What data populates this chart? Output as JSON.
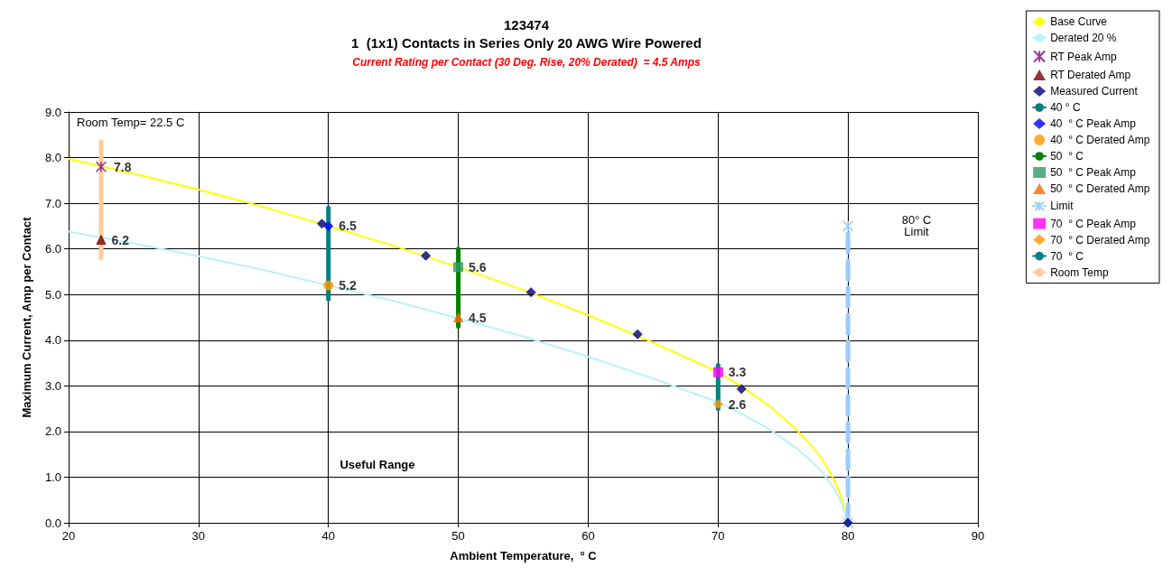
{
  "chart_data": {
    "type": "line",
    "title": "123474\n1  (1x1) Contacts in Series Only 20 AWG Wire Powered",
    "subtitle": "Current Rating per Contact (30 Deg. Rise, 20% Derated)  = 4.5 Amps",
    "xlabel": "Ambient Temperature,  ° C",
    "ylabel": "Maximum Current, Amp per Contact",
    "xlim": [
      20,
      90
    ],
    "xticks": [
      20,
      30,
      40,
      50,
      60,
      70,
      80,
      90
    ],
    "ylim": [
      0,
      9
    ],
    "yticks": [
      {
        "value": 0,
        "label": "0.0"
      },
      {
        "value": 1,
        "label": "1.0"
      },
      {
        "value": 2,
        "label": "2.0"
      },
      {
        "value": 3,
        "label": "3.0"
      },
      {
        "value": 4,
        "label": "4.0"
      },
      {
        "value": 5,
        "label": "5.0"
      },
      {
        "value": 6,
        "label": "6.0"
      },
      {
        "value": 7,
        "label": "7.0"
      },
      {
        "value": 8,
        "label": "8.0"
      },
      {
        "value": 9,
        "label": "9.0"
      }
    ],
    "grid": true,
    "legend": "right",
    "series": [
      {
        "name": "Base Curve",
        "color": "#ffff00",
        "marker": "none",
        "x": [
          20,
          25,
          30,
          35,
          40,
          45,
          50,
          55,
          60,
          65,
          70,
          72,
          74,
          76,
          77,
          78,
          79,
          79.5,
          80
        ],
        "values": [
          7.97,
          7.65,
          7.3,
          6.92,
          6.5,
          6.07,
          5.6,
          5.1,
          4.55,
          3.95,
          3.3,
          2.95,
          2.55,
          2.05,
          1.75,
          1.4,
          0.9,
          0.55,
          0
        ]
      },
      {
        "name": "Derated 20 %",
        "color": "#b8f2fc",
        "marker": "none",
        "x": [
          20,
          25,
          30,
          35,
          40,
          45,
          50,
          55,
          60,
          65,
          70,
          72,
          74,
          76,
          77,
          78,
          79,
          79.5,
          80
        ],
        "values": [
          6.38,
          6.12,
          5.84,
          5.54,
          5.2,
          4.86,
          4.48,
          4.08,
          3.64,
          3.16,
          2.64,
          2.36,
          2.04,
          1.64,
          1.4,
          1.12,
          0.72,
          0.44,
          0
        ]
      },
      {
        "name": "RT Peak Amp",
        "type": "scatter",
        "color": "#800080",
        "marker": "cross",
        "x": [
          22.5
        ],
        "values": [
          7.8
        ],
        "value_labels": [
          "7.8"
        ]
      },
      {
        "name": "RT Derated Amp",
        "type": "scatter",
        "color": "#800000",
        "marker": "triangle",
        "x": [
          22.5
        ],
        "values": [
          6.2
        ],
        "value_labels": [
          "6.2"
        ]
      },
      {
        "name": "Measured Current",
        "type": "scatter",
        "color": "#000080",
        "marker": "diamond",
        "x": [
          39.5,
          47.5,
          55.6,
          63.8,
          71.8,
          80
        ],
        "values": [
          6.55,
          5.85,
          5.05,
          4.13,
          2.93,
          0
        ]
      },
      {
        "name": "40 ° C",
        "color": "#008080",
        "marker": "none",
        "x": [
          40,
          40
        ],
        "values": [
          4.9,
          6.9
        ]
      },
      {
        "name": "40  ° C Peak Amp",
        "type": "scatter",
        "color": "#0000ff",
        "marker": "diamond",
        "x": [
          40
        ],
        "values": [
          6.5
        ],
        "value_labels": [
          "6.5"
        ]
      },
      {
        "name": "40  ° C Derated Amp",
        "type": "scatter",
        "color": "#ff9900",
        "marker": "circle",
        "x": [
          40
        ],
        "values": [
          5.2
        ],
        "value_labels": [
          "5.2"
        ]
      },
      {
        "name": "50  ° C",
        "color": "#008000",
        "marker": "none",
        "x": [
          50,
          50
        ],
        "values": [
          4.3,
          6.0
        ]
      },
      {
        "name": "50  ° C Peak Amp",
        "type": "scatter",
        "color": "#339966",
        "marker": "square",
        "x": [
          50
        ],
        "values": [
          5.6
        ],
        "value_labels": [
          "5.6"
        ]
      },
      {
        "name": "50  ° C Derated Amp",
        "type": "scatter",
        "color": "#ff6600",
        "marker": "triangle",
        "x": [
          50
        ],
        "values": [
          4.5
        ],
        "value_labels": [
          "4.5"
        ]
      },
      {
        "name": "Limit",
        "color": "#99ccff",
        "marker": "cross",
        "line_style": "dashed",
        "x": [
          80,
          80
        ],
        "values": [
          0,
          6.5
        ]
      },
      {
        "name": "70  ° C Peak Amp",
        "type": "scatter",
        "color": "#ff00ff",
        "marker": "square",
        "x": [
          70
        ],
        "values": [
          3.3
        ],
        "value_labels": [
          "3.3"
        ]
      },
      {
        "name": "70  ° C Derated Amp",
        "type": "scatter",
        "color": "#ff9900",
        "marker": "diamond",
        "x": [
          70
        ],
        "values": [
          2.6
        ],
        "value_labels": [
          "2.6"
        ]
      },
      {
        "name": "70  ° C",
        "color": "#008080",
        "marker": "none",
        "x": [
          70,
          70
        ],
        "values": [
          2.5,
          3.45
        ]
      },
      {
        "name": "Room Temp",
        "color": "#ffcc99",
        "marker": "none",
        "x": [
          22.5,
          22.5
        ],
        "values": [
          5.8,
          8.35
        ]
      }
    ],
    "annotations": [
      "Room Temp= 22.5 C",
      "80° C\nLimit",
      "Useful Range"
    ]
  }
}
